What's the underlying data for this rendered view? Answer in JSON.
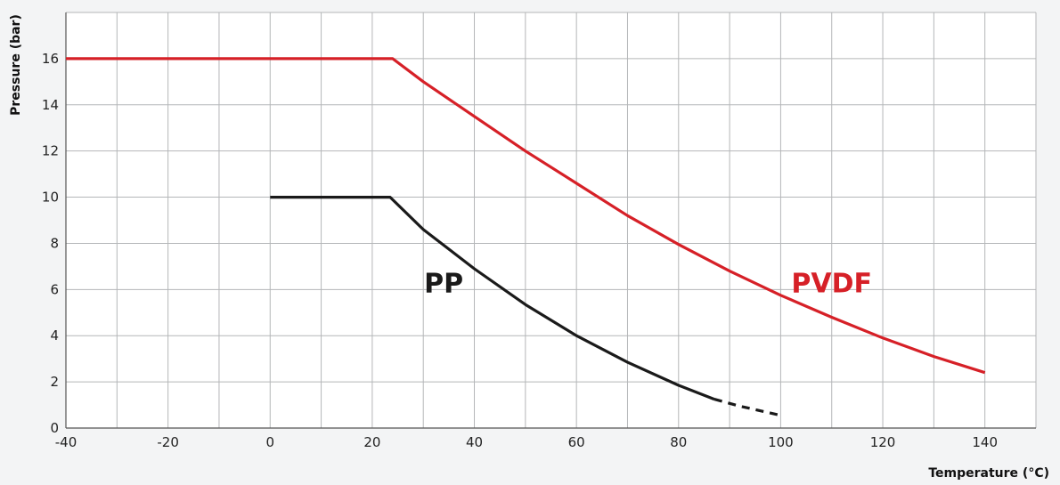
{
  "chart_data": {
    "type": "line",
    "xlabel": "Temperature (°C)",
    "ylabel": "Pressure (bar)",
    "xlim": [
      -40,
      150
    ],
    "ylim": [
      0,
      18
    ],
    "x_ticks": [
      -40,
      -20,
      0,
      20,
      40,
      60,
      80,
      100,
      120,
      140
    ],
    "x_tick_labels": [
      "-40",
      "-20",
      "0",
      "20",
      "40",
      "60",
      "80",
      "100",
      "120",
      "140"
    ],
    "y_ticks": [
      0,
      2,
      4,
      6,
      8,
      10,
      12,
      14,
      16
    ],
    "y_tick_labels": [
      "0",
      "2",
      "4",
      "6",
      "8",
      "10",
      "12",
      "14",
      "16"
    ],
    "grid": true,
    "grid_x_step": 10,
    "grid_y_step": 2,
    "series": [
      {
        "name": "PVDF",
        "color": "#d62027",
        "x": [
          -40,
          24,
          30,
          40,
          50,
          60,
          70,
          80,
          90,
          100,
          110,
          120,
          130,
          140
        ],
        "y": [
          16,
          16,
          15,
          13.5,
          12,
          10.6,
          9.2,
          7.95,
          6.8,
          5.75,
          4.8,
          3.9,
          3.1,
          2.4
        ]
      },
      {
        "name": "PP",
        "color": "#1a1a1a",
        "x": [
          0,
          23.5,
          30,
          40,
          50,
          60,
          70,
          80,
          87
        ],
        "y": [
          10,
          10,
          8.6,
          6.9,
          5.35,
          4.0,
          2.85,
          1.85,
          1.25
        ]
      },
      {
        "name": "PP (extrapolated)",
        "color": "#1a1a1a",
        "dashed": true,
        "x": [
          87,
          92,
          100
        ],
        "y": [
          1.25,
          0.95,
          0.55
        ]
      }
    ],
    "labels": [
      {
        "text": "PP",
        "color": "#1a1a1a",
        "x": 34,
        "y": 6.3
      },
      {
        "text": "PVDF",
        "color": "#d62027",
        "x": 110,
        "y": 6.3
      }
    ]
  }
}
